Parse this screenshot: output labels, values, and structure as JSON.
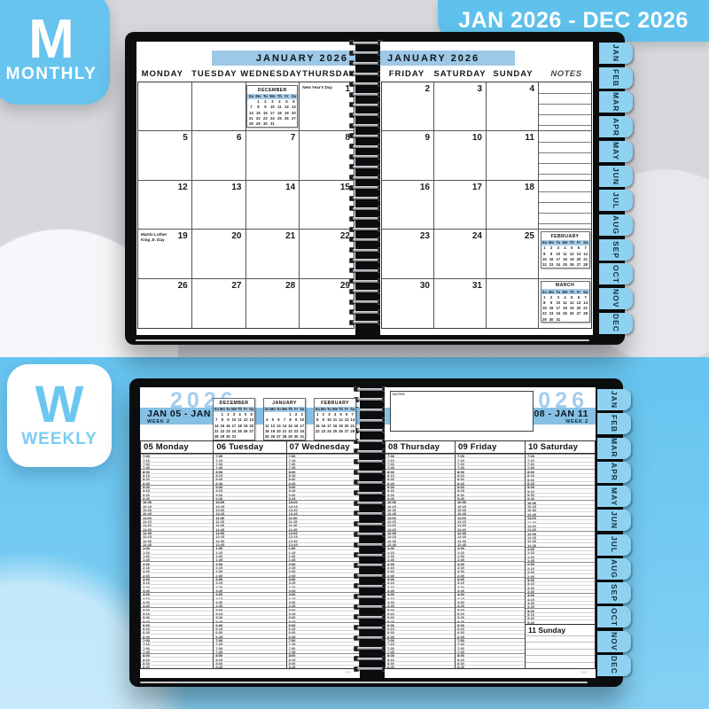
{
  "banner": {
    "text": "JAN 2026 - DEC 2026"
  },
  "badges": {
    "monthly": {
      "letter": "M",
      "label": "MONTHLY"
    },
    "weekly": {
      "letter": "W",
      "label": "WEEKLY"
    }
  },
  "tabs": [
    "JAN",
    "FEB",
    "MAR",
    "APR",
    "MAY",
    "JUN",
    "JUL",
    "AUG",
    "SEP",
    "OCT",
    "NOV",
    "DEC"
  ],
  "mini_calendars": {
    "dow": [
      "Su",
      "Mo",
      "Tu",
      "We",
      "Th",
      "Fr",
      "Sa"
    ],
    "december": {
      "title": "DECEMBER",
      "weeks": [
        [
          "",
          "1",
          "2",
          "3",
          "4",
          "5",
          "6"
        ],
        [
          "7",
          "8",
          "9",
          "10",
          "11",
          "12",
          "13"
        ],
        [
          "14",
          "15",
          "16",
          "17",
          "18",
          "19",
          "20"
        ],
        [
          "21",
          "22",
          "23",
          "24",
          "25",
          "26",
          "27"
        ],
        [
          "28",
          "29",
          "30",
          "31",
          "",
          "",
          ""
        ]
      ]
    },
    "january": {
      "title": "JANUARY",
      "weeks": [
        [
          "",
          "",
          "",
          "",
          "1",
          "2",
          "3"
        ],
        [
          "4",
          "5",
          "6",
          "7",
          "8",
          "9",
          "10"
        ],
        [
          "11",
          "12",
          "13",
          "14",
          "15",
          "16",
          "17"
        ],
        [
          "18",
          "19",
          "20",
          "21",
          "22",
          "23",
          "24"
        ],
        [
          "25",
          "26",
          "27",
          "28",
          "29",
          "30",
          "31"
        ]
      ]
    },
    "february": {
      "title": "FEBRUARY",
      "weeks": [
        [
          "1",
          "2",
          "3",
          "4",
          "5",
          "6",
          "7"
        ],
        [
          "8",
          "9",
          "10",
          "11",
          "12",
          "13",
          "14"
        ],
        [
          "15",
          "16",
          "17",
          "18",
          "19",
          "20",
          "21"
        ],
        [
          "22",
          "23",
          "24",
          "25",
          "26",
          "27",
          "28"
        ]
      ]
    },
    "march": {
      "title": "MARCH",
      "weeks": [
        [
          "1",
          "2",
          "3",
          "4",
          "5",
          "6",
          "7"
        ],
        [
          "8",
          "9",
          "10",
          "11",
          "12",
          "13",
          "14"
        ],
        [
          "15",
          "16",
          "17",
          "18",
          "19",
          "20",
          "21"
        ],
        [
          "22",
          "23",
          "24",
          "25",
          "26",
          "27",
          "28"
        ],
        [
          "29",
          "30",
          "31",
          "",
          "",
          "",
          ""
        ]
      ]
    }
  },
  "monthly_spread": {
    "left": {
      "month_title": "JANUARY 2026",
      "day_headers": [
        "MONDAY",
        "TUESDAY",
        "WEDNESDAY",
        "THURSDAY"
      ],
      "rows": [
        [
          {},
          {},
          {
            "minical": "december"
          },
          {
            "date": "1",
            "holiday": "New Year's Day"
          }
        ],
        [
          {
            "date": "5"
          },
          {
            "date": "6"
          },
          {
            "date": "7"
          },
          {
            "date": "8"
          }
        ],
        [
          {
            "date": "12"
          },
          {
            "date": "13"
          },
          {
            "date": "14"
          },
          {
            "date": "15"
          }
        ],
        [
          {
            "date": "19",
            "holiday": "Martin Luther King Jr. Day"
          },
          {
            "date": "20"
          },
          {
            "date": "21"
          },
          {
            "date": "22"
          }
        ],
        [
          {
            "date": "26"
          },
          {
            "date": "27"
          },
          {
            "date": "28"
          },
          {
            "date": "29"
          }
        ]
      ]
    },
    "right": {
      "month_title": "JANUARY 2026",
      "day_headers": [
        "FRIDAY",
        "SATURDAY",
        "SUNDAY"
      ],
      "notes_header": "NOTES",
      "rows": [
        [
          {
            "date": "2"
          },
          {
            "date": "3"
          },
          {
            "date": "4"
          }
        ],
        [
          {
            "date": "9"
          },
          {
            "date": "10"
          },
          {
            "date": "11"
          }
        ],
        [
          {
            "date": "16"
          },
          {
            "date": "17"
          },
          {
            "date": "18"
          }
        ],
        [
          {
            "date": "23"
          },
          {
            "date": "24"
          },
          {
            "date": "25"
          }
        ],
        [
          {
            "date": "30"
          },
          {
            "date": "31"
          },
          {}
        ]
      ],
      "notes_cells": [
        {
          "lines": 4
        },
        {
          "lines": 4
        },
        {
          "lines": 4
        },
        {
          "minical": "february"
        },
        {
          "minical": "march"
        }
      ]
    }
  },
  "weekly_spread": {
    "left": {
      "year": "2026",
      "date_range": "JAN 05 - JAN 07",
      "week_label": "WEEK 2",
      "minicals": [
        "december",
        "january",
        "february"
      ],
      "days": [
        "05 Monday",
        "06 Tuesday",
        "07 Wednesday"
      ]
    },
    "right": {
      "year": "2026",
      "notes_label": "NOTES",
      "date_range": "JAN 08 - JAN 11",
      "week_label": "WEEK 2",
      "days": [
        "08 Thursday",
        "09 Friday",
        "10 Saturday"
      ],
      "sunday_label": "11 Sunday"
    },
    "time_slots": [
      "7:00",
      "7:15",
      "7:30",
      "7:45",
      "8:00",
      "8:15",
      "8:30",
      "8:45",
      "9:00",
      "9:15",
      "9:30",
      "9:45",
      "10:00",
      "10:15",
      "10:30",
      "10:45",
      "11:00",
      "11:15",
      "11:30",
      "11:45",
      "12:00",
      "12:15",
      "12:30",
      "12:45",
      "1:00",
      "1:15",
      "1:30",
      "1:45",
      "2:00",
      "2:15",
      "2:30",
      "2:45",
      "3:00",
      "3:15",
      "3:30",
      "3:45",
      "4:00",
      "4:15",
      "4:30",
      "4:45",
      "5:00",
      "5:15",
      "5:30",
      "5:45",
      "6:00",
      "6:15",
      "6:30",
      "6:45",
      "7:00",
      "7:15",
      "7:30",
      "7:45",
      "8:00",
      "8:15",
      "8:30",
      "8:45"
    ],
    "saturday_slot_count": 44
  },
  "colors": {
    "accent_blue": "#66c4ee",
    "page_bar_blue": "#9dc8e6",
    "tab_blue": "#8ed1f0",
    "bottom_background_blue": "#6ac7f0",
    "year_text_blue": "#a6cdeb"
  },
  "brand_mark": "〰"
}
